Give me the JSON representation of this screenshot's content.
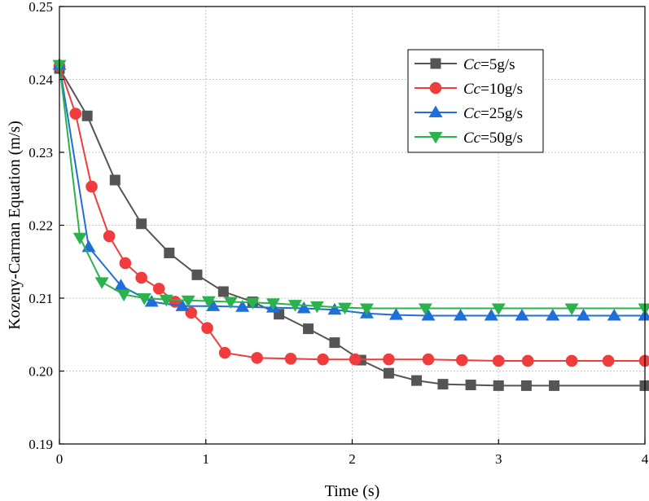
{
  "chart_data": {
    "type": "line",
    "title": "",
    "xlabel": "Time (s)",
    "ylabel": "Kozeny-Carman Equation (m/s)",
    "xlim": [
      0,
      4
    ],
    "ylim": [
      0.19,
      0.25
    ],
    "xticks": [
      0,
      1,
      2,
      3,
      4
    ],
    "xtick_labels": [
      "0",
      "1",
      "2",
      "3",
      "4"
    ],
    "yticks": [
      0.19,
      0.2,
      0.21,
      0.22,
      0.23,
      0.24,
      0.25
    ],
    "ytick_labels": [
      "0.19",
      "0.20",
      "0.21",
      "0.22",
      "0.23",
      "0.24",
      "0.25"
    ],
    "grid": true,
    "legend_position": "top-right",
    "series": [
      {
        "name": "Cc=5g/s",
        "legend_italic": "Cc",
        "legend_rest": "=5g/s",
        "color": "#555555",
        "marker": "square",
        "x": [
          0,
          0.19,
          0.38,
          0.56,
          0.75,
          0.94,
          1.12,
          1.32,
          1.5,
          1.7,
          1.88,
          2.06,
          2.25,
          2.44,
          2.62,
          2.81,
          3.0,
          3.19,
          3.38,
          4.0
        ],
        "y": [
          0.2415,
          0.235,
          0.2262,
          0.2202,
          0.2162,
          0.2132,
          0.2109,
          0.2095,
          0.2078,
          0.2058,
          0.2039,
          0.2015,
          0.1997,
          0.1987,
          0.1982,
          0.1981,
          0.198,
          0.198,
          0.198,
          0.198
        ]
      },
      {
        "name": "Cc=10g/s",
        "legend_italic": "Cc",
        "legend_rest": "=10g/s",
        "color": "#f03c3c",
        "marker": "circle",
        "x": [
          0,
          0.11,
          0.22,
          0.34,
          0.45,
          0.56,
          0.68,
          0.79,
          0.9,
          1.01,
          1.13,
          1.35,
          1.58,
          1.8,
          2.02,
          2.25,
          2.52,
          2.75,
          3.0,
          3.2,
          3.5,
          3.75,
          4.0
        ],
        "y": [
          0.2418,
          0.2353,
          0.2253,
          0.2185,
          0.2148,
          0.2128,
          0.2113,
          0.2095,
          0.208,
          0.2059,
          0.2025,
          0.2018,
          0.2017,
          0.2016,
          0.2016,
          0.2016,
          0.2016,
          0.2015,
          0.2014,
          0.2014,
          0.2014,
          0.2014,
          0.2014
        ]
      },
      {
        "name": "Cc=25g/s",
        "legend_italic": "Cc",
        "legend_rest": "=25g/s",
        "color": "#1f6fd9",
        "marker": "triangle-up",
        "x": [
          0,
          0.2,
          0.42,
          0.63,
          0.84,
          1.05,
          1.25,
          1.46,
          1.67,
          1.88,
          2.1,
          2.3,
          2.52,
          2.74,
          2.95,
          3.16,
          3.37,
          3.58,
          3.79,
          4.0
        ],
        "y": [
          0.242,
          0.217,
          0.2117,
          0.2095,
          0.2089,
          0.2089,
          0.2088,
          0.2087,
          0.2086,
          0.2084,
          0.2079,
          0.2077,
          0.2076,
          0.2076,
          0.2076,
          0.2076,
          0.2076,
          0.2076,
          0.2076,
          0.2076
        ]
      },
      {
        "name": "Cc=50g/s",
        "legend_italic": "Cc",
        "legend_rest": "=50g/s",
        "color": "#2bb24c",
        "marker": "triangle-down",
        "x": [
          0,
          0.14,
          0.29,
          0.44,
          0.58,
          0.73,
          0.88,
          1.02,
          1.17,
          1.32,
          1.46,
          1.61,
          1.76,
          1.95,
          2.1,
          2.5,
          3.0,
          3.5,
          4.0
        ],
        "y": [
          0.242,
          0.2183,
          0.2122,
          0.2105,
          0.21,
          0.2098,
          0.2097,
          0.2096,
          0.2095,
          0.2094,
          0.2093,
          0.2091,
          0.2089,
          0.2087,
          0.2086,
          0.2086,
          0.2086,
          0.2086,
          0.2086
        ]
      }
    ]
  }
}
